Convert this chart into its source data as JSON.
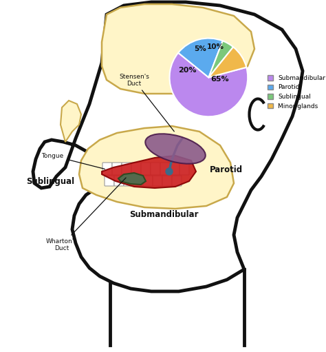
{
  "pie_values": [
    65,
    20,
    5,
    10
  ],
  "pie_labels": [
    "65%",
    "20%",
    "5%",
    "10%"
  ],
  "pie_colors": [
    "#bb88ee",
    "#5baaee",
    "#7bc87b",
    "#f0b84a"
  ],
  "pie_legend_labels": [
    "Submandibular",
    "Parotid",
    "Sublingual",
    "Minor glands"
  ],
  "bg_color": "#ffffff",
  "head_outline": "#111111",
  "skull_color": "#fff5c8",
  "tongue_color": "#cc2020",
  "parotid_color": "#5a7090",
  "sublingual_color": "#4a7050",
  "submandibular_color": "#8a5a8a",
  "teeth_color": "#ffffff"
}
